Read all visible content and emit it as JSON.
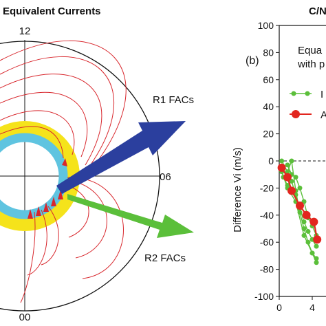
{
  "left_panel": {
    "title": "Equivalent Currents",
    "mlt_labels": {
      "top": "12",
      "right": "06",
      "bottom": "00"
    },
    "arrows": [
      {
        "label": "R1 FACs",
        "color": "#2b3f9e"
      },
      {
        "label": "R2 FACs",
        "color": "#5bbf3a"
      }
    ],
    "colors": {
      "outer_ring": "#f5e31b",
      "inner_ring": "#5fc4e0",
      "current_lines": "#d8262c"
    }
  },
  "chart_data": {
    "type": "line",
    "panel_label": "(b)",
    "title": "C/N",
    "legend_text": [
      "Equa",
      "with p"
    ],
    "ylabel": "Difference Vi (m/s)",
    "xlabel": "",
    "ylim": [
      -100,
      100
    ],
    "xlim": [
      0,
      5
    ],
    "y_ticks": [
      100,
      80,
      60,
      40,
      20,
      0,
      -20,
      -40,
      -60,
      -80,
      -100
    ],
    "x_ticks": [
      0,
      4
    ],
    "zero_line_dashed": true,
    "series": [
      {
        "name": "I",
        "color": "#5bbf3a",
        "marker_size": "small",
        "x": [
          0.3,
          0.5,
          1.0,
          1.5,
          2.0,
          2.5,
          3.0,
          3.5,
          4.0,
          4.5
        ],
        "y": [
          -5,
          -12,
          -18,
          -15,
          -25,
          -35,
          -45,
          -52,
          -58,
          -63
        ]
      },
      {
        "name": "",
        "color": "#5bbf3a",
        "marker_size": "small",
        "x": [
          0.3,
          1.0,
          1.5,
          2.0,
          2.5,
          3.0,
          3.5,
          4.0,
          4.5
        ],
        "y": [
          0,
          -8,
          0,
          -22,
          -38,
          -50,
          -60,
          -68,
          -75
        ]
      },
      {
        "name": "",
        "color": "#5bbf3a",
        "marker_size": "small",
        "x": [
          1.0,
          1.5,
          2.0,
          2.5,
          3.0,
          3.5,
          4.0,
          4.5
        ],
        "y": [
          -3,
          -10,
          -12,
          -20,
          -30,
          -42,
          -48,
          -55
        ]
      },
      {
        "name": "",
        "color": "#5bbf3a",
        "marker_size": "small",
        "x": [
          0.3,
          1.0,
          2.0,
          3.0,
          4.0,
          4.5
        ],
        "y": [
          -8,
          -20,
          -30,
          -55,
          -68,
          -72
        ]
      },
      {
        "name": "A",
        "color": "#e2261f",
        "marker_size": "large",
        "x": [
          0.3,
          1.0,
          1.5,
          2.5,
          3.3,
          4.2,
          4.6
        ],
        "y": [
          -5,
          -12,
          -22,
          -33,
          -40,
          -45,
          -58
        ]
      }
    ]
  }
}
